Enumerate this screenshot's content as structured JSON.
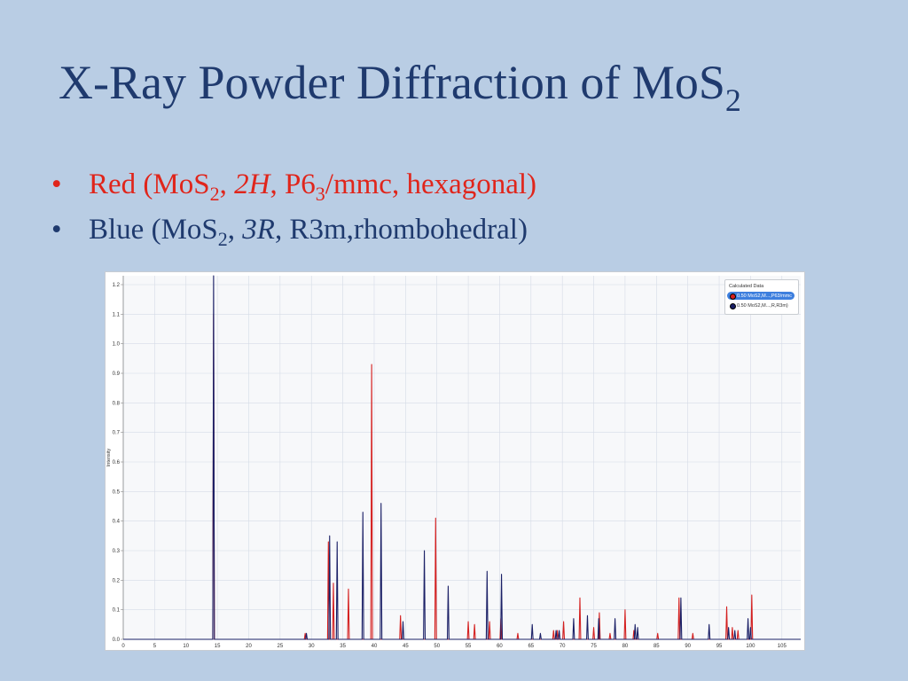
{
  "slide": {
    "title_main": "X-Ray Powder Diffraction of MoS",
    "title_sub": "2",
    "bullets": [
      {
        "bullet": "•",
        "pre": "Red (MoS",
        "sub": "2",
        "comma": ", ",
        "italic": "2H",
        "post_a": ", P6",
        "sub2": "3",
        "post_b": "/mmc, hexagonal)"
      },
      {
        "bullet": "•",
        "pre": "Blue (MoS",
        "sub": "2",
        "comma": ", ",
        "italic": "3R",
        "post_a": ", R3m,rhombohedral)"
      }
    ]
  },
  "chart_data": {
    "type": "line",
    "ylabel": "Intensity",
    "xlabel": "",
    "xlim": [
      0,
      108
    ],
    "ylim": [
      0,
      1.23
    ],
    "x_ticks": [
      0,
      5,
      10,
      15,
      20,
      25,
      30,
      35,
      40,
      45,
      50,
      55,
      60,
      65,
      70,
      75,
      80,
      85,
      90,
      95,
      100,
      105
    ],
    "y_ticks": [
      0.0,
      0.1,
      0.2,
      0.3,
      0.4,
      0.5,
      0.6,
      0.7,
      0.8,
      0.9,
      1.0,
      1.1,
      1.2
    ],
    "grid": true,
    "legend": {
      "position": "top-right",
      "title": "Calculated Data",
      "entries": [
        "0.50 MoS2,M...,P63/mmc",
        "0.50 MoS2,M...,R,R3m)"
      ]
    },
    "series": [
      {
        "name": "0.50 MoS2,M...,P63/mmc",
        "color": "#d42020",
        "peaks": [
          [
            14.4,
            1.1
          ],
          [
            29.0,
            0.02
          ],
          [
            32.7,
            0.33
          ],
          [
            33.5,
            0.19
          ],
          [
            35.9,
            0.17
          ],
          [
            39.6,
            0.93
          ],
          [
            44.2,
            0.08
          ],
          [
            49.8,
            0.41
          ],
          [
            55.0,
            0.06
          ],
          [
            56.0,
            0.05
          ],
          [
            58.4,
            0.06
          ],
          [
            60.2,
            0.07
          ],
          [
            62.9,
            0.02
          ],
          [
            68.6,
            0.03
          ],
          [
            69.2,
            0.03
          ],
          [
            70.2,
            0.06
          ],
          [
            72.8,
            0.14
          ],
          [
            75.0,
            0.04
          ],
          [
            75.9,
            0.09
          ],
          [
            77.6,
            0.02
          ],
          [
            80.0,
            0.1
          ],
          [
            81.4,
            0.03
          ],
          [
            85.2,
            0.02
          ],
          [
            88.6,
            0.14
          ],
          [
            90.8,
            0.02
          ],
          [
            96.2,
            0.11
          ],
          [
            97.1,
            0.04
          ],
          [
            98.0,
            0.03
          ],
          [
            100.2,
            0.15
          ]
        ]
      },
      {
        "name": "0.50 MoS2,M...,R,R3m)",
        "color": "#1a1f66",
        "peaks": [
          [
            14.4,
            1.24
          ],
          [
            29.2,
            0.02
          ],
          [
            32.9,
            0.35
          ],
          [
            34.1,
            0.33
          ],
          [
            38.2,
            0.43
          ],
          [
            41.1,
            0.46
          ],
          [
            44.6,
            0.06
          ],
          [
            48.0,
            0.3
          ],
          [
            51.8,
            0.18
          ],
          [
            58.0,
            0.23
          ],
          [
            60.3,
            0.22
          ],
          [
            65.2,
            0.05
          ],
          [
            66.5,
            0.02
          ],
          [
            69.0,
            0.03
          ],
          [
            69.5,
            0.03
          ],
          [
            71.8,
            0.07
          ],
          [
            74.0,
            0.08
          ],
          [
            75.8,
            0.07
          ],
          [
            78.4,
            0.07
          ],
          [
            81.6,
            0.05
          ],
          [
            82.0,
            0.04
          ],
          [
            88.9,
            0.14
          ],
          [
            93.4,
            0.05
          ],
          [
            96.5,
            0.04
          ],
          [
            97.5,
            0.03
          ],
          [
            99.6,
            0.07
          ],
          [
            100.0,
            0.04
          ]
        ]
      }
    ]
  }
}
